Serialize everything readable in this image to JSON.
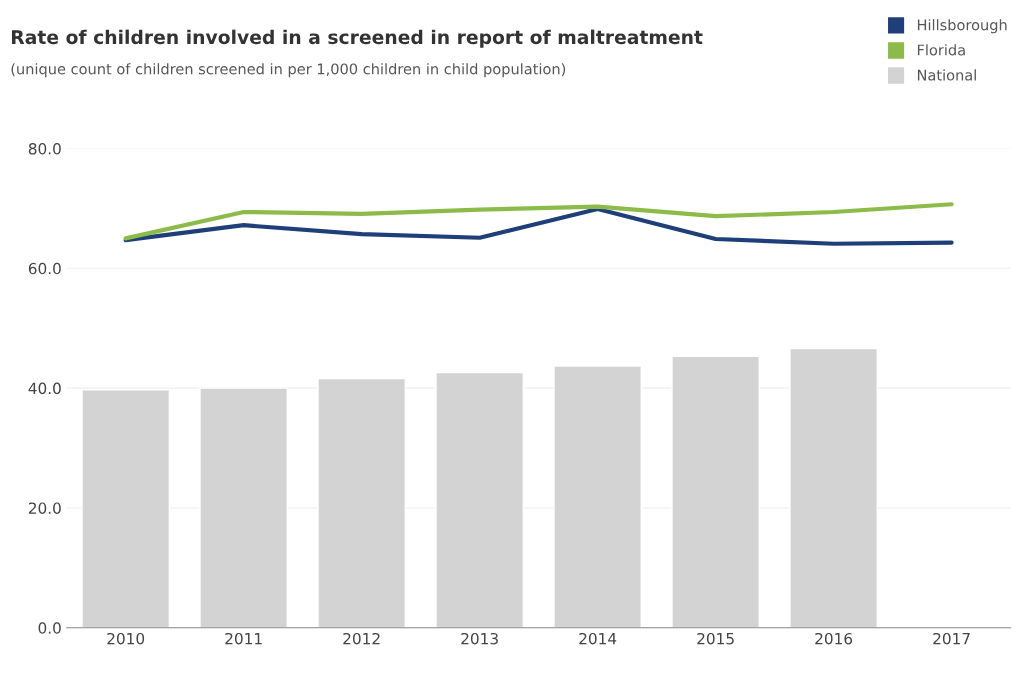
{
  "chart_data": {
    "type": "bar",
    "title": "Rate of children involved in a screened in report of maltreatment",
    "subtitle": "(unique count of children screened in per 1,000 children in child population)",
    "categories": [
      "2010",
      "2011",
      "2012",
      "2013",
      "2014",
      "2015",
      "2016",
      "2017"
    ],
    "series": [
      {
        "name": "Hillsborough",
        "type": "line",
        "color": "#1f3f7a",
        "values": [
          64.7,
          67.2,
          65.7,
          65.1,
          69.9,
          64.9,
          64.1,
          64.3
        ]
      },
      {
        "name": "Florida",
        "type": "line",
        "color": "#8dbb4a",
        "values": [
          65.0,
          69.4,
          69.1,
          69.8,
          70.3,
          68.7,
          69.4,
          70.7
        ]
      },
      {
        "name": "National",
        "color": "#d3d3d3",
        "values": [
          39.7,
          40.0,
          41.6,
          42.6,
          43.7,
          45.3,
          46.6,
          null
        ]
      }
    ],
    "ylim": [
      0,
      80
    ],
    "yticks": [
      {
        "value": 0,
        "label": "0.0"
      },
      {
        "value": 20,
        "label": "20.0"
      },
      {
        "value": 40,
        "label": "40.0"
      },
      {
        "value": 60,
        "label": "60.0"
      },
      {
        "value": 80,
        "label": "80.0"
      }
    ],
    "grid": "y",
    "legend": "top right"
  }
}
